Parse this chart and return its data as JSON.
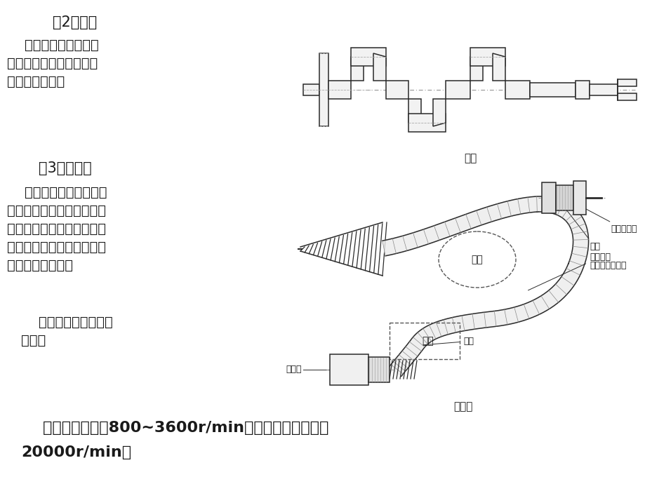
{
  "bg_color": "#ffffff",
  "title2": "（2）曲轴",
  "text2_line1": "    曲轴是内燃机、冲、",
  "text2_line2": "剪等机器设备中的轴，属",
  "text2_line3": "专用机械零件。",
  "title3": "（3）挠性轴",
  "text3_line1": "    挠性轴是由多层钢丝绕",
  "text3_line2": "制而成，可把旋转运动和转",
  "text3_line3": "矩灵活地传到任何位置，可",
  "text3_line4": "用于连续振动场合，狭窄通",
  "text3_line5": "道，可缓和冲击。",
  "text4_line1": "    如：振捣器、手提砂",
  "text4_line2": "轮等。",
  "caption1": "曲轴",
  "caption2": "挠性轴",
  "bottom_text1": "    一般使用转速为800~3600r/min，小尺寸挠性轴可达",
  "bottom_text2": "20000r/min。",
  "label_shebei": "设备",
  "label_dongliyuan": "动力源",
  "label_beiqu": "被驱动装置",
  "label_jietou": "接头",
  "label_gangsi": "钢丝软轴",
  "label_waiceng": "（外层为护套）",
  "text_color": "#1a1a1a",
  "line_color": "#333333",
  "dash_color": "#777777",
  "font_size_main": 14,
  "font_size_title": 15,
  "font_size_caption": 11,
  "font_size_label": 9,
  "font_size_bottom": 16
}
